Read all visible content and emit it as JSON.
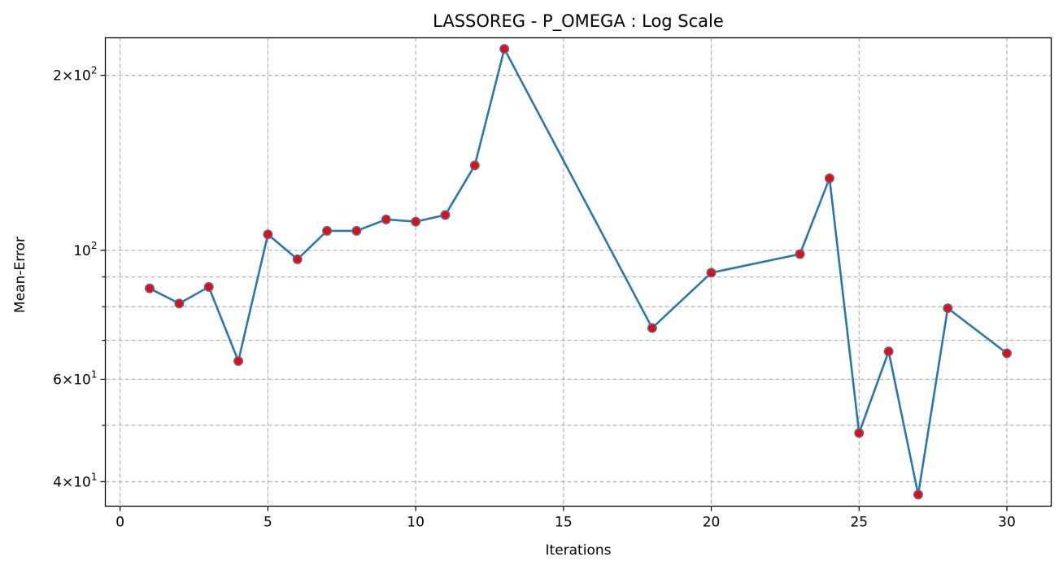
{
  "chart_data": {
    "type": "line",
    "title": "LASSOREG - P_OMEGA : Log Scale",
    "xlabel": "Iterations",
    "ylabel": "Mean-Error",
    "yscale": "log",
    "grid": true,
    "xlim": [
      -0.5,
      31.5
    ],
    "ylim": [
      36.3,
      232
    ],
    "x_ticks": [
      0,
      5,
      10,
      15,
      20,
      25,
      30
    ],
    "y_major_ticks": [
      {
        "value": 40,
        "mant": "4",
        "exp": "1"
      },
      {
        "value": 60,
        "mant": "6",
        "exp": "1"
      },
      {
        "value": 100,
        "mant": "",
        "exp": "2"
      },
      {
        "value": 200,
        "mant": "2",
        "exp": "2"
      }
    ],
    "y_minor_gridlines": [
      50,
      70,
      80,
      90
    ],
    "line_color": "#2878b0",
    "marker_face": "#ff0000",
    "marker_edge": "#4a6fa5",
    "series": [
      {
        "x": [
          1,
          2,
          3,
          4,
          5,
          6,
          7,
          8,
          9,
          10,
          11,
          12,
          13,
          18,
          20,
          23,
          24,
          25,
          26,
          27,
          28,
          30
        ],
        "values": [
          86,
          81,
          86.5,
          64.5,
          106.5,
          96.5,
          108,
          108,
          113,
          112,
          115,
          140,
          222,
          73.5,
          91.5,
          98.5,
          133,
          48.5,
          67,
          38,
          79.5,
          66.5
        ]
      }
    ]
  }
}
